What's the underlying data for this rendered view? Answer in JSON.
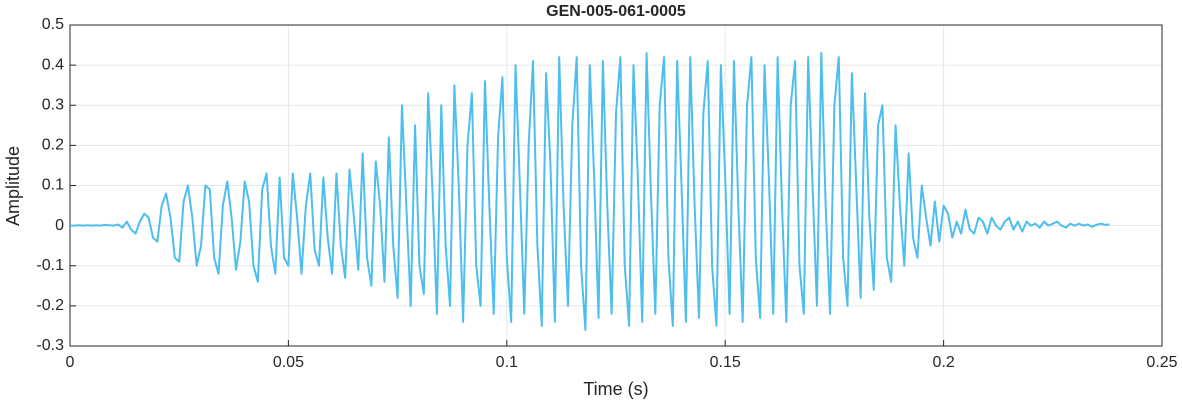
{
  "chart_data": {
    "type": "line",
    "title": "GEN-005-061-0005",
    "x_label": "Time (s)",
    "y_label": "Amplitude",
    "grid": true,
    "xlim": [
      0,
      0.25
    ],
    "xticks": [
      0,
      0.05,
      0.1,
      0.15,
      0.2,
      0.25
    ],
    "ylim": [
      -0.3,
      0.5
    ],
    "yticks": [
      -0.3,
      -0.2,
      -0.1,
      0,
      0.1,
      0.2,
      0.3,
      0.4,
      0.5
    ],
    "x": [
      0,
      0.001,
      0.002,
      0.003,
      0.004,
      0.005,
      0.006,
      0.007,
      0.008,
      0.009,
      0.01,
      0.011,
      0.012,
      0.013,
      0.014,
      0.015,
      0.016,
      0.017,
      0.018,
      0.019,
      0.02,
      0.021,
      0.022,
      0.023,
      0.024,
      0.025,
      0.026,
      0.027,
      0.028,
      0.029,
      0.03,
      0.031,
      0.032,
      0.033,
      0.034,
      0.035,
      0.036,
      0.037,
      0.038,
      0.039,
      0.04,
      0.041,
      0.042,
      0.043,
      0.044,
      0.045,
      0.046,
      0.047,
      0.048,
      0.049,
      0.05,
      0.051,
      0.052,
      0.053,
      0.054,
      0.055,
      0.056,
      0.057,
      0.058,
      0.059,
      0.06,
      0.061,
      0.062,
      0.063,
      0.064,
      0.065,
      0.066,
      0.067,
      0.068,
      0.069,
      0.07,
      0.071,
      0.072,
      0.073,
      0.074,
      0.075,
      0.076,
      0.077,
      0.078,
      0.079,
      0.08,
      0.081,
      0.082,
      0.083,
      0.084,
      0.085,
      0.086,
      0.087,
      0.088,
      0.089,
      0.09,
      0.091,
      0.092,
      0.093,
      0.094,
      0.095,
      0.096,
      0.097,
      0.098,
      0.099,
      0.1,
      0.101,
      0.102,
      0.103,
      0.104,
      0.105,
      0.106,
      0.107,
      0.108,
      0.109,
      0.11,
      0.111,
      0.112,
      0.113,
      0.114,
      0.115,
      0.116,
      0.117,
      0.118,
      0.119,
      0.12,
      0.121,
      0.122,
      0.123,
      0.124,
      0.125,
      0.126,
      0.127,
      0.128,
      0.129,
      0.13,
      0.131,
      0.132,
      0.133,
      0.134,
      0.135,
      0.136,
      0.137,
      0.138,
      0.139,
      0.14,
      0.141,
      0.142,
      0.143,
      0.144,
      0.145,
      0.146,
      0.147,
      0.148,
      0.149,
      0.15,
      0.151,
      0.152,
      0.153,
      0.154,
      0.155,
      0.156,
      0.157,
      0.158,
      0.159,
      0.16,
      0.161,
      0.162,
      0.163,
      0.164,
      0.165,
      0.166,
      0.167,
      0.168,
      0.169,
      0.17,
      0.171,
      0.172,
      0.173,
      0.174,
      0.175,
      0.176,
      0.177,
      0.178,
      0.179,
      0.18,
      0.181,
      0.182,
      0.183,
      0.184,
      0.185,
      0.186,
      0.187,
      0.188,
      0.189,
      0.19,
      0.191,
      0.192,
      0.193,
      0.194,
      0.195,
      0.196,
      0.197,
      0.198,
      0.199,
      0.2,
      0.201,
      0.202,
      0.203,
      0.204,
      0.205,
      0.206,
      0.207,
      0.208,
      0.209,
      0.21,
      0.211,
      0.212,
      0.213,
      0.214,
      0.215,
      0.216,
      0.217,
      0.218,
      0.219,
      0.22,
      0.221,
      0.222,
      0.223,
      0.224,
      0.225,
      0.226,
      0.227,
      0.228,
      0.229,
      0.23,
      0.231,
      0.232,
      0.233,
      0.234,
      0.235,
      0.236,
      0.237,
      0.238
    ],
    "series": [
      {
        "color": "#4dbeee",
        "values": [
          0,
          0,
          0.001,
          0,
          0.001,
          0,
          0.001,
          0,
          0.002,
          0.001,
          0,
          0.003,
          -0.005,
          0.01,
          -0.01,
          -0.02,
          0.01,
          0.03,
          0.02,
          -0.03,
          -0.04,
          0.05,
          0.08,
          0.02,
          -0.08,
          -0.09,
          0.06,
          0.1,
          0.02,
          -0.1,
          -0.05,
          0.1,
          0.09,
          -0.08,
          -0.12,
          0.05,
          0.11,
          0.02,
          -0.11,
          -0.04,
          0.11,
          0.06,
          -0.1,
          -0.14,
          0.09,
          0.13,
          -0.05,
          -0.12,
          0.12,
          -0.08,
          -0.1,
          0.13,
          0.02,
          -0.12,
          0.05,
          0.13,
          -0.06,
          -0.1,
          0.12,
          -0.03,
          -0.12,
          0.13,
          -0.05,
          -0.13,
          0.14,
          0.02,
          -0.11,
          0.18,
          -0.08,
          -0.15,
          0.16,
          0.05,
          -0.14,
          0.22,
          -0.05,
          -0.18,
          0.3,
          0.05,
          -0.2,
          0.25,
          -0.1,
          -0.17,
          0.33,
          0.08,
          -0.22,
          0.3,
          -0.05,
          -0.2,
          0.35,
          0.1,
          -0.24,
          0.2,
          0.33,
          -0.1,
          -0.2,
          0.36,
          0.05,
          -0.22,
          0.22,
          0.37,
          -0.08,
          -0.24,
          0.4,
          0.1,
          -0.22,
          0.2,
          0.41,
          -0.05,
          -0.25,
          0.38,
          0.15,
          -0.24,
          0.42,
          0.05,
          -0.2,
          0.25,
          0.42,
          -0.1,
          -0.26,
          0.4,
          0.12,
          -0.23,
          0.41,
          0.05,
          -0.22,
          0.28,
          0.42,
          -0.1,
          -0.25,
          0.4,
          0.12,
          -0.24,
          0.43,
          0.08,
          -0.22,
          0.3,
          0.42,
          -0.08,
          -0.25,
          0.41,
          0.1,
          -0.24,
          0.42,
          0.05,
          -0.23,
          0.28,
          0.41,
          -0.1,
          -0.25,
          0.4,
          0.12,
          -0.22,
          0.41,
          0.05,
          -0.24,
          0.3,
          0.42,
          -0.08,
          -0.23,
          0.4,
          0.12,
          -0.22,
          0.42,
          0.05,
          -0.24,
          0.3,
          0.41,
          -0.1,
          -0.22,
          0.42,
          0.1,
          -0.2,
          0.43,
          0.05,
          -0.22,
          0.3,
          0.42,
          -0.08,
          -0.2,
          0.38,
          0.1,
          -0.18,
          0.33,
          0.02,
          -0.16,
          0.25,
          0.3,
          -0.08,
          -0.14,
          0.25,
          0.05,
          -0.1,
          0.18,
          -0.03,
          -0.08,
          0.1,
          0.02,
          -0.05,
          0.06,
          -0.04,
          0.05,
          0.03,
          -0.03,
          0.01,
          -0.02,
          0.04,
          -0.01,
          -0.02,
          0.02,
          0.01,
          -0.02,
          0.02,
          0,
          -0.01,
          0.01,
          0.02,
          -0.01,
          0.01,
          -0.015,
          0.01,
          0,
          0.005,
          -0.005,
          0.01,
          0,
          0.005,
          0.01,
          0,
          -0.005,
          0.005,
          0,
          0.005,
          0,
          0.003,
          -0.003,
          0.002,
          0.005,
          0.002,
          0.003
        ]
      }
    ]
  }
}
